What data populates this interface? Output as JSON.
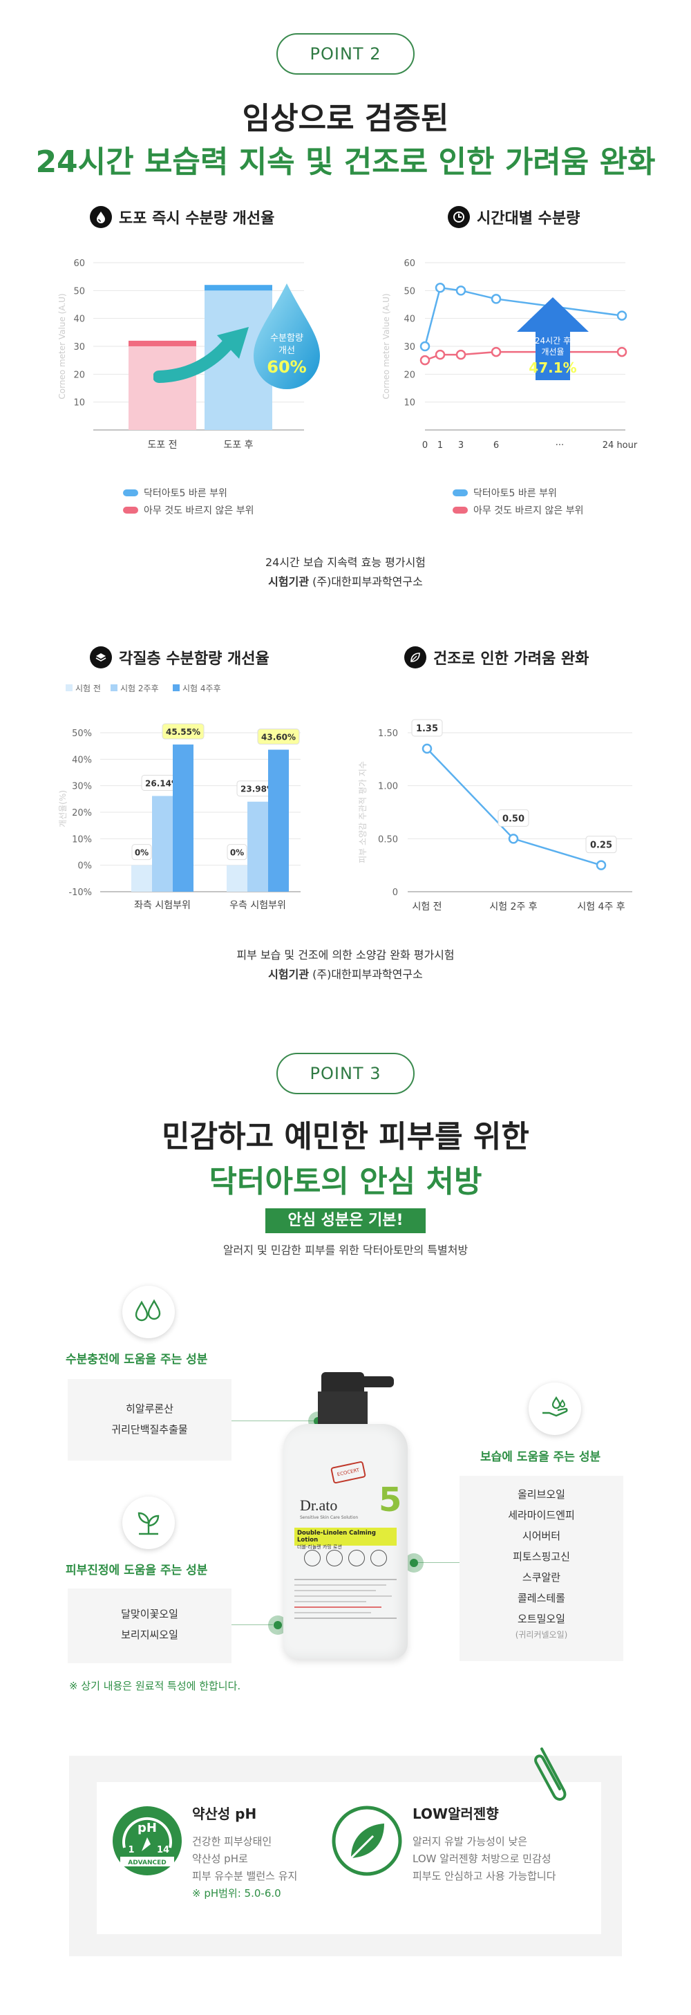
{
  "point2": {
    "label": "POINT 2",
    "headline_1": "임상으로 검증된",
    "headline_2": "24시간 보습력 지속 및 건조로 인한 가려움 완화"
  },
  "chart1_section": {
    "title": "도포 즉시 수분량 개선율",
    "icon": "water-drop-icon",
    "badge_1": "수분함량",
    "badge_2": "개선",
    "badge_value": "60%"
  },
  "chart2_section": {
    "title": "시간대별 수분량",
    "icon": "clock-icon",
    "badge_1": "24시간 후",
    "badge_2": "개선율",
    "badge_value": "47.1%"
  },
  "legend_top": {
    "series_a": "닥터아토5 바른 부위",
    "series_b": "아무 것도 바르지 않은 부위"
  },
  "note_top": {
    "line1": "24시간 보습 지속력 효능 평가시험",
    "line2_bold": "시험기관",
    "line2_rest": " (주)대한피부과학연구소"
  },
  "chart3_section": {
    "title": "각질층 수분함량 개선율",
    "icon": "layers-icon"
  },
  "chart4_section": {
    "title": "건조로 인한 가려움 완화",
    "icon": "leaf-icon"
  },
  "note_mid": {
    "line1": "피부 보습 및 건조에 의한 소양감 완화 평가시험",
    "line2_bold": "시험기관",
    "line2_rest": " (주)대한피부과학연구소"
  },
  "chart_data": [
    {
      "type": "bar",
      "title": "도포 즉시 수분량 개선율",
      "categories": [
        "도포 전",
        "도포 후"
      ],
      "values": [
        32,
        52
      ],
      "ylabel": "Corneo meter Value (A.U)",
      "yticks": [
        10,
        20,
        30,
        40,
        50,
        60
      ],
      "ylim": [
        0,
        60
      ],
      "colors": [
        "#f9c9d2",
        "#b5dcf7"
      ],
      "cap_colors": [
        "#f06b80",
        "#4aa9ee"
      ],
      "grid": true
    },
    {
      "type": "line",
      "title": "시간대별 수분량",
      "x": [
        0,
        1,
        3,
        6,
        24
      ],
      "xticks": [
        "0",
        "1",
        "3",
        "6",
        "···",
        "24 hour"
      ],
      "ylabel": "Corneo meter Value (A.U)",
      "yticks": [
        10,
        20,
        30,
        40,
        50,
        60
      ],
      "ylim": [
        0,
        60
      ],
      "series": [
        {
          "name": "닥터아토5 바른 부위",
          "values": [
            30,
            51,
            50,
            47,
            41
          ],
          "color": "#5ab0ef"
        },
        {
          "name": "아무 것도 바르지 않은 부위",
          "values": [
            25,
            27,
            27,
            28,
            28
          ],
          "color": "#ef6b80"
        }
      ],
      "grid": true
    },
    {
      "type": "bar",
      "title": "각질층 수분함량 개선율",
      "categories": [
        "좌측 시험부위",
        "우측 시험부위"
      ],
      "ylabel": "개선율(%)",
      "yticks": [
        "-10%",
        "0%",
        "10%",
        "20%",
        "30%",
        "40%",
        "50%"
      ],
      "ylim": [
        -10,
        50
      ],
      "legend_position": "top",
      "series": [
        {
          "name": "시험 전",
          "values": [
            0,
            0
          ],
          "labels": [
            "0%",
            "0%"
          ],
          "color": "#d9ecfb"
        },
        {
          "name": "시험 2주후",
          "values": [
            26.14,
            23.98
          ],
          "labels": [
            "26.14%",
            "23.98%"
          ],
          "color": "#a9d3f7"
        },
        {
          "name": "시험 4주후",
          "values": [
            45.55,
            43.6
          ],
          "labels": [
            "45.55%",
            "43.60%"
          ],
          "color": "#5aa9ef"
        }
      ],
      "grid": true
    },
    {
      "type": "line",
      "title": "건조로 인한 가려움 완화",
      "categories": [
        "시험 전",
        "시험 2주 후",
        "시험 4주 후"
      ],
      "ylabel": "피부 소양감 주관적 평가 지수",
      "yticks": [
        "0",
        "0.50",
        "1.00",
        "1.50"
      ],
      "ylim": [
        0,
        1.5
      ],
      "series": [
        {
          "values": [
            1.35,
            0.5,
            0.25
          ],
          "labels": [
            "1.35",
            "0.50",
            "0.25"
          ],
          "color": "#5ab0ef"
        }
      ],
      "grid": true
    }
  ],
  "point3": {
    "label": "POINT 3",
    "headline_1": "민감하고 예민한 피부를 위한",
    "headline_2": "닥터아토의 안심 처방",
    "tag": "안심 성분은 기본!",
    "sub": "알러지 및 민감한 피부를 위한 닥터아토만의 특별처방"
  },
  "ingredients": {
    "moisture_charge": {
      "title": "수분충전에 도움을 주는 성분",
      "icon": "water-drops-icon",
      "items": [
        "히알루론산",
        "귀리단백질추출물"
      ]
    },
    "skin_calm": {
      "title": "피부진정에 도움을 주는 성분",
      "icon": "sprout-icon",
      "items": [
        "달맞이꽃오일",
        "보리지씨오일"
      ]
    },
    "moisturizing": {
      "title": "보습에 도움을 주는 성분",
      "icon": "hand-drop-icon",
      "items": [
        "올리브오일",
        "세라마이드엔피",
        "시어버터",
        "피토스핑고신",
        "스쿠알란",
        "콜레스테롤",
        "오트밀오일"
      ],
      "note": "(귀리커넬오일)"
    },
    "footnote": "※ 상기 내용은 원료적 특성에 한합니다."
  },
  "product": {
    "brand": "Dr.ato",
    "number": "5",
    "subline": "Sensitive Skin Care Solution",
    "name_en": "Double-Linolen Calming Lotion",
    "name_ko": "더블-리놀렌 카밍 로션",
    "badge": "ECOCERT"
  },
  "features": {
    "ph": {
      "title": "약산성 pH",
      "icon": "ph-gauge-icon",
      "icon_top": "pH",
      "icon_left": "1",
      "icon_right": "14",
      "icon_band": "ADVANCED",
      "lines": [
        "건강한 피부상태인",
        "약산성 pH로",
        "피부 유수분 밸런스 유지"
      ],
      "range": "※ pH범위: 5.0-6.0"
    },
    "allergen": {
      "title": "LOW알러젠향",
      "icon": "leaf-circle-icon",
      "lines": [
        "알러지 유발 가능성이 낮은",
        "LOW 알러젠향 처방으로 민감성",
        "피부도 안심하고 사용 가능합니다"
      ]
    }
  }
}
